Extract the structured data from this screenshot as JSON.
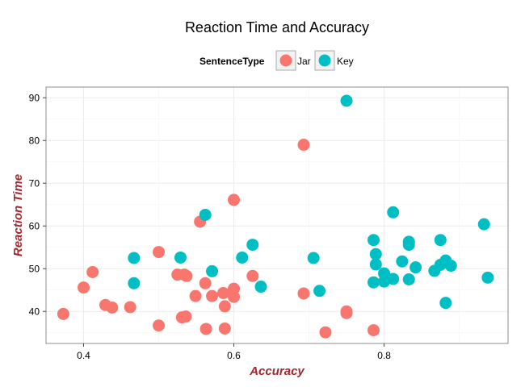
{
  "chart_data": {
    "type": "scatter",
    "title": "Reaction Time and Accuracy",
    "xlabel": "Accuracy",
    "ylabel": "Reaction Time",
    "axis_label_color": "#a3282e",
    "xlim": [
      0.35,
      0.965
    ],
    "ylim": [
      32.5,
      92.5
    ],
    "xticks": [
      0.4,
      0.6,
      0.8
    ],
    "xtick_labels": [
      "0.4",
      "0.6",
      "0.8"
    ],
    "yticks": [
      40,
      50,
      60,
      70,
      80,
      90
    ],
    "ytick_labels": [
      "40",
      "50",
      "60",
      "70",
      "80",
      "90"
    ],
    "grid": true,
    "legend": {
      "title": "SentenceType",
      "placement": "top",
      "entries": [
        "Jar",
        "Key"
      ]
    },
    "series": [
      {
        "name": "Jar",
        "color": "#f8766d",
        "points": [
          [
            0.373,
            39.4
          ],
          [
            0.4,
            45.6
          ],
          [
            0.412,
            49.2
          ],
          [
            0.429,
            41.5
          ],
          [
            0.438,
            40.9
          ],
          [
            0.462,
            41.0
          ],
          [
            0.5,
            53.9
          ],
          [
            0.5,
            36.7
          ],
          [
            0.525,
            48.6
          ],
          [
            0.531,
            38.6
          ],
          [
            0.534,
            48.6
          ],
          [
            0.537,
            48.3
          ],
          [
            0.536,
            38.8
          ],
          [
            0.549,
            43.6
          ],
          [
            0.555,
            61.0
          ],
          [
            0.562,
            46.6
          ],
          [
            0.563,
            35.9
          ],
          [
            0.571,
            43.6
          ],
          [
            0.586,
            44.3
          ],
          [
            0.588,
            36.0
          ],
          [
            0.588,
            41.2
          ],
          [
            0.6,
            45.3
          ],
          [
            0.6,
            43.4
          ],
          [
            0.6,
            66.1
          ],
          [
            0.625,
            48.3
          ],
          [
            0.693,
            79.0
          ],
          [
            0.693,
            44.2
          ],
          [
            0.722,
            35.1
          ],
          [
            0.75,
            40.0
          ],
          [
            0.75,
            39.6
          ],
          [
            0.786,
            35.6
          ]
        ]
      },
      {
        "name": "Key",
        "color": "#00bfc4",
        "points": [
          [
            0.467,
            52.5
          ],
          [
            0.467,
            46.6
          ],
          [
            0.529,
            52.6
          ],
          [
            0.562,
            62.6
          ],
          [
            0.571,
            49.4
          ],
          [
            0.611,
            52.6
          ],
          [
            0.625,
            55.6
          ],
          [
            0.636,
            45.8
          ],
          [
            0.706,
            52.5
          ],
          [
            0.714,
            44.8
          ],
          [
            0.75,
            89.3
          ],
          [
            0.786,
            56.7
          ],
          [
            0.786,
            46.8
          ],
          [
            0.789,
            53.4
          ],
          [
            0.789,
            51.0
          ],
          [
            0.8,
            48.9
          ],
          [
            0.8,
            47.0
          ],
          [
            0.812,
            63.2
          ],
          [
            0.812,
            47.6
          ],
          [
            0.824,
            51.7
          ],
          [
            0.833,
            56.3
          ],
          [
            0.833,
            55.6
          ],
          [
            0.833,
            47.5
          ],
          [
            0.842,
            50.3
          ],
          [
            0.867,
            49.5
          ],
          [
            0.875,
            56.7
          ],
          [
            0.875,
            50.9
          ],
          [
            0.882,
            51.9
          ],
          [
            0.882,
            42.0
          ],
          [
            0.889,
            50.7
          ],
          [
            0.933,
            60.4
          ],
          [
            0.938,
            47.9
          ]
        ]
      }
    ]
  }
}
